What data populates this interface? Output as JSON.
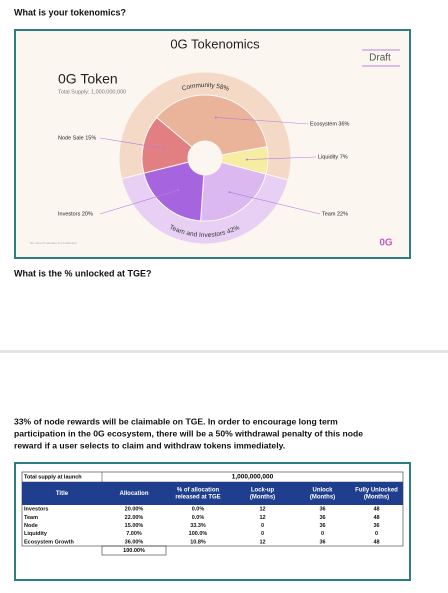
{
  "question1": "What is your tokenomics?",
  "slide": {
    "title": "0G Tokenomics",
    "badge": "Draft",
    "token_name": "0G Token",
    "total_supply": "Total Supply: 1,000,000,000",
    "outer_ring": [
      {
        "label": "Community 58%",
        "value": 58,
        "color": "#f4d9c6"
      },
      {
        "label": "Team and Investors 42%",
        "value": 42,
        "color": "#e7d0f3"
      }
    ],
    "segments": [
      {
        "label": "Node Sale 15%",
        "value": 15,
        "color": "#e27f82"
      },
      {
        "label": "Ecosystem 36%",
        "value": 36,
        "color": "#e9b49a"
      },
      {
        "label": "Liquidity 7%",
        "value": 7,
        "color": "#f6eca2"
      },
      {
        "label": "Team 22%",
        "value": 22,
        "color": "#dcb8f1"
      },
      {
        "label": "Investors 20%",
        "value": 20,
        "color": "#a665df"
      }
    ],
    "footer": "0G Labs Proprietary & Confidential",
    "logo": "0G"
  },
  "question2": "What is the % unlocked at TGE?",
  "paragraph": [
    "33% of node rewards will be claimable on TGE. In order to encourage long term",
    "participation in the 0G ecosystem, there will be a 50% withdrawal penalty of this node",
    "reward if a user selects to claim and withdraw tokens immediately."
  ],
  "table": {
    "supply_label": "Total supply at launch",
    "supply_value": "1,000,000,000",
    "columns": [
      [
        "Title"
      ],
      [
        "Allocation"
      ],
      [
        "% of allocation",
        "released at TGE"
      ],
      [
        "Lock-up",
        "(Months)"
      ],
      [
        "Unlock",
        "(Months)"
      ],
      [
        "Fully Unlocked",
        "(Months)"
      ]
    ],
    "rows": [
      [
        "Investors",
        "20.00%",
        "0.0%",
        "12",
        "36",
        "48"
      ],
      [
        "Team",
        "22.00%",
        "0.0%",
        "12",
        "36",
        "48"
      ],
      [
        "Node",
        "15.00%",
        "33.3%",
        "0",
        "36",
        "36"
      ],
      [
        "Liquidity",
        "7.00%",
        "100.0%",
        "0",
        "0",
        "0"
      ],
      [
        "Ecosystem Growth",
        "36.00%",
        "10.8%",
        "12",
        "36",
        "48"
      ]
    ],
    "total": "100.00%"
  }
}
